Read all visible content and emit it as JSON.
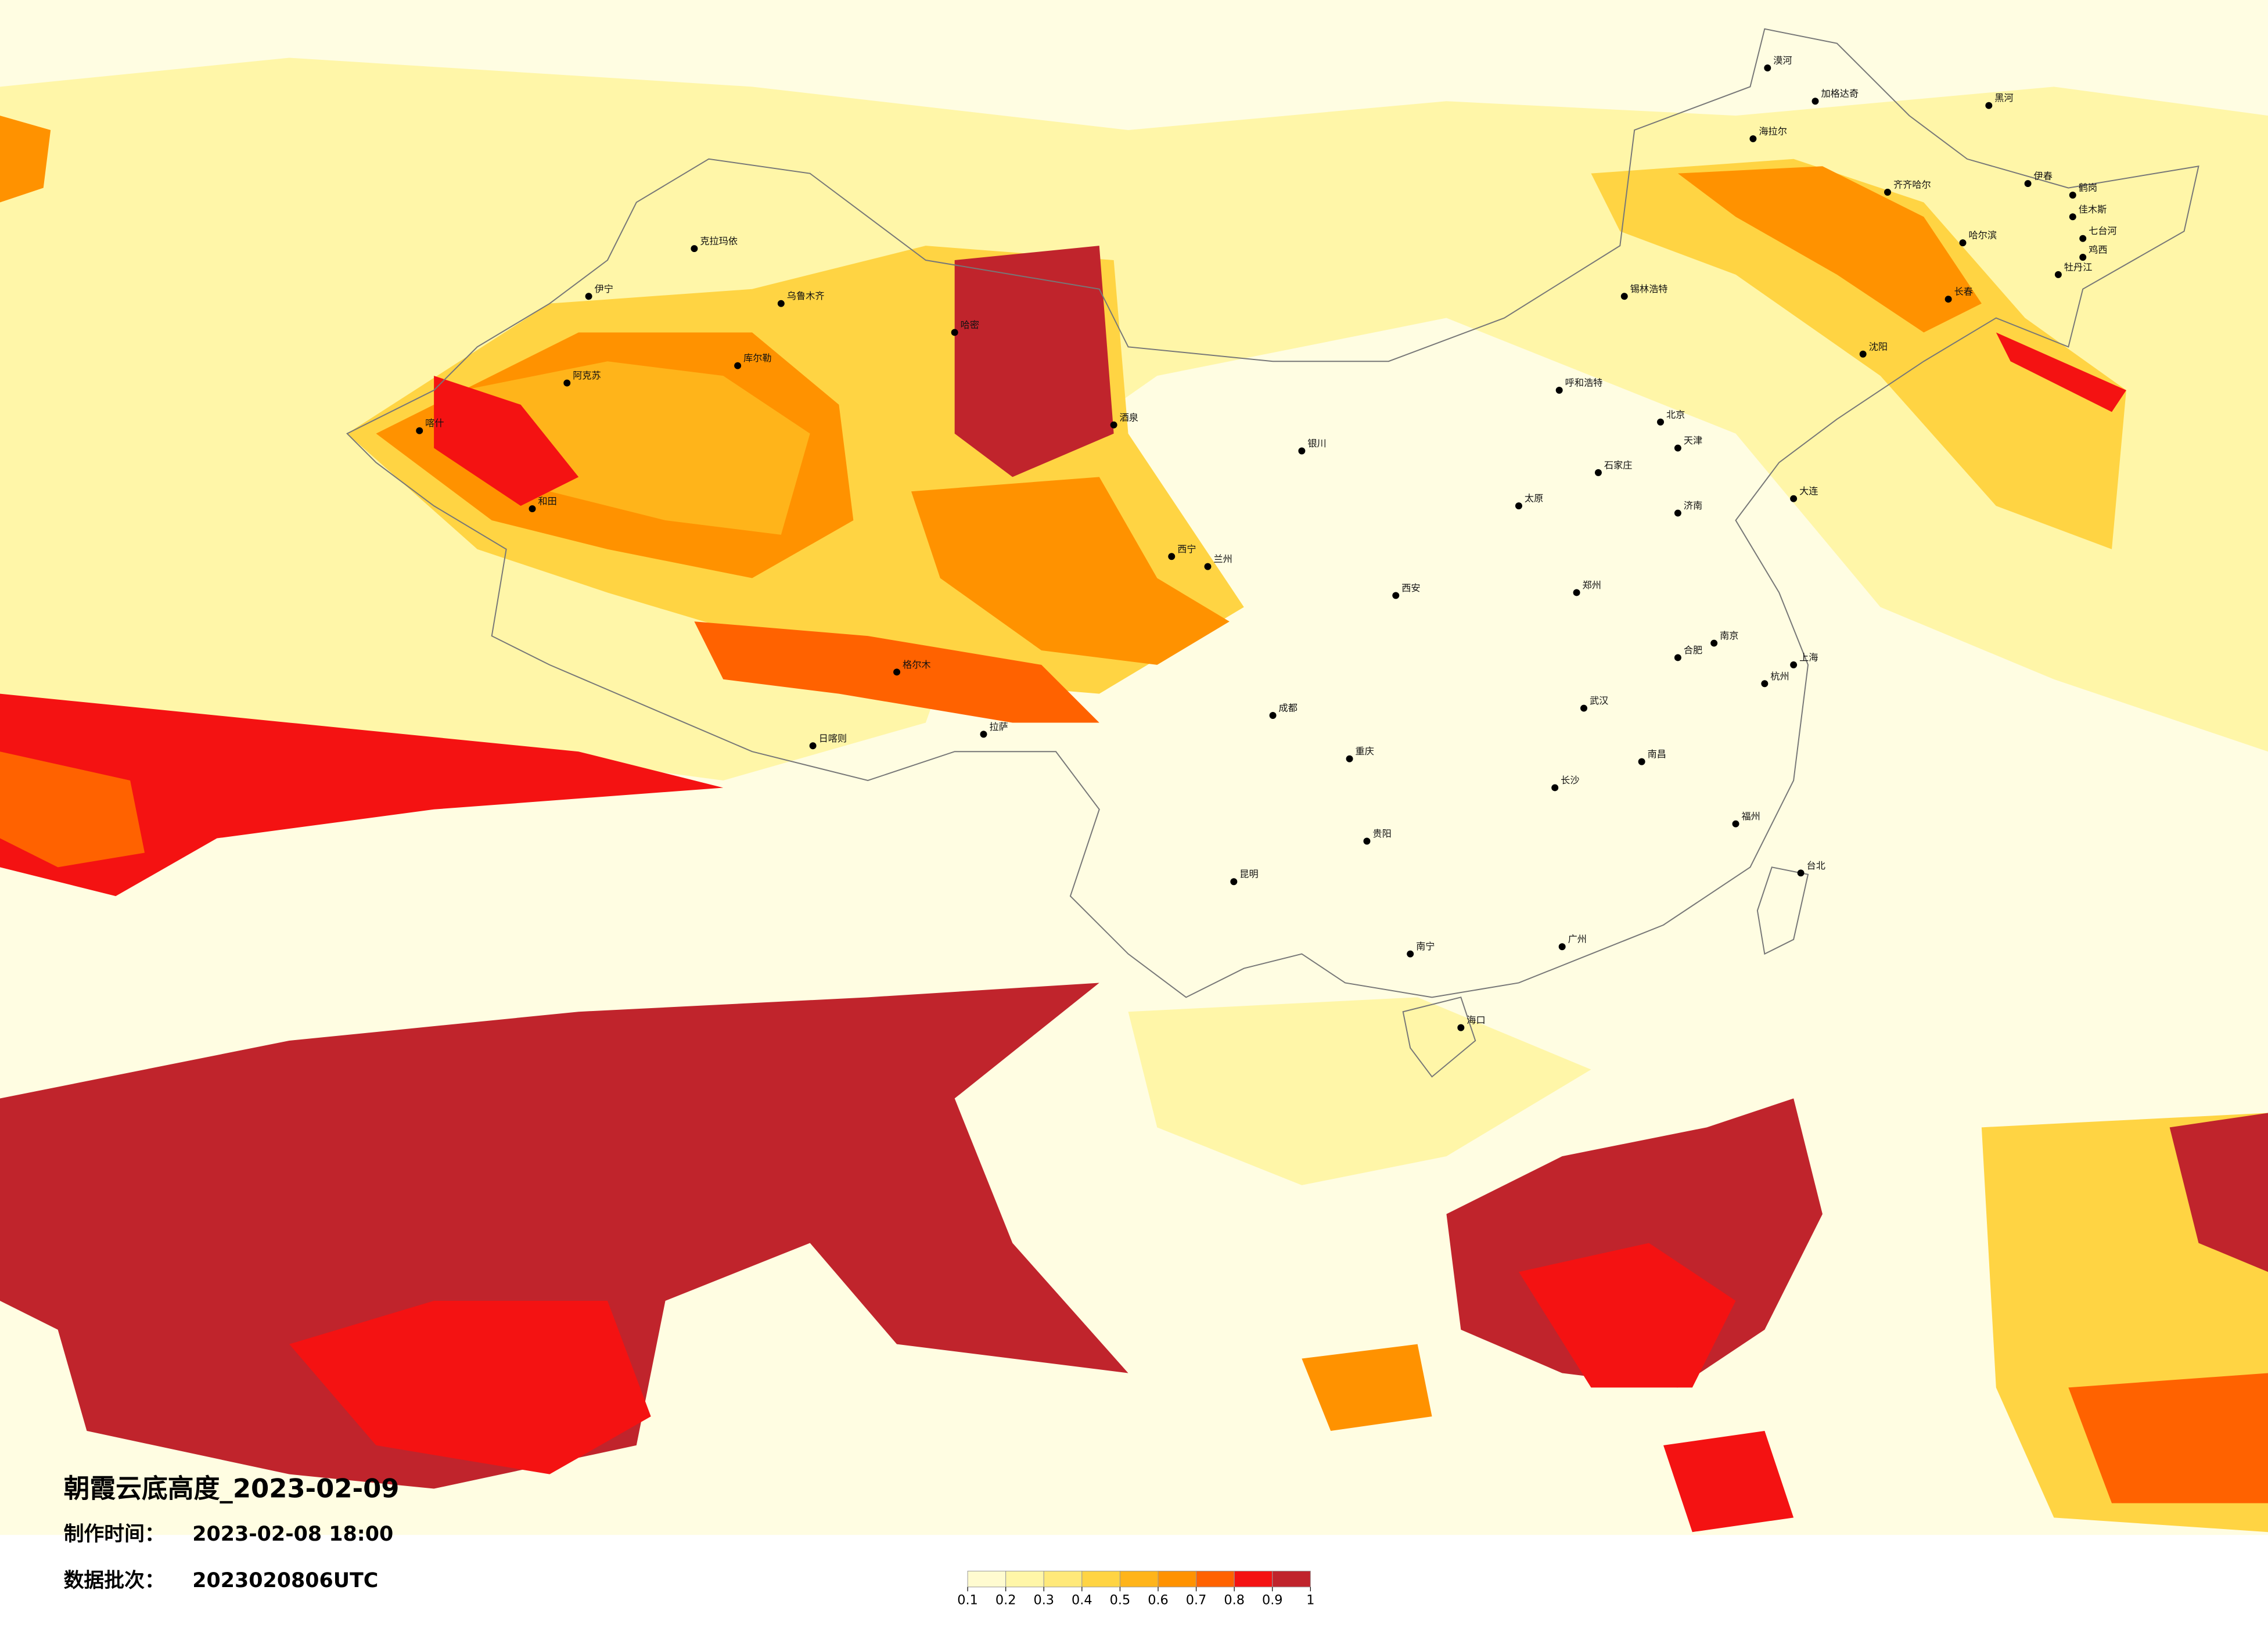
{
  "title": "朝霞云底高度_2023-02-09",
  "made_label": "制作时间：",
  "made_time": "2023-02-08 18:00",
  "batch_label": "数据批次：",
  "batch": "2023020806UTC",
  "colorbar": {
    "ticks": [
      0.1,
      0.2,
      0.3,
      0.4,
      0.5,
      0.6,
      0.7,
      0.8,
      0.9,
      1
    ],
    "colors": [
      "#fffbd0",
      "#fff6a8",
      "#ffe97a",
      "#ffd443",
      "#ffb41a",
      "#ff9200",
      "#ff6200",
      "#f41212",
      "#c0242c"
    ]
  },
  "cities": [
    "漠河",
    "加格达奇",
    "黑河",
    "海拉尔",
    "伊春",
    "齐齐哈尔",
    "鹤岗",
    "佳木斯",
    "哈尔滨",
    "七台河",
    "鸡西",
    "牡丹江",
    "长春",
    "锡林浩特",
    "呼和浩特",
    "沈阳",
    "北京",
    "天津",
    "石家庄",
    "大连",
    "太原",
    "济南",
    "银川",
    "兰州",
    "西宁",
    "郑州",
    "西安",
    "南京",
    "上海",
    "合肥",
    "武汉",
    "成都",
    "重庆",
    "长沙",
    "南昌",
    "杭州",
    "福州",
    "贵阳",
    "昆明",
    "南宁",
    "广州",
    "台北",
    "海口",
    "拉萨",
    "日喀则",
    "乌鲁木齐",
    "喀什",
    "和田",
    "哈密",
    "库尔勒",
    "克拉玛依",
    "伊宁",
    "阿克苏",
    "格尔木",
    "酒泉"
  ]
}
